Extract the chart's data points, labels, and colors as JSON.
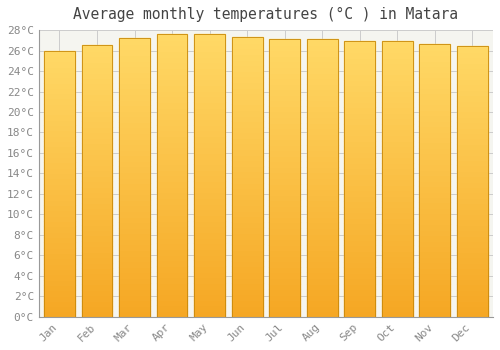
{
  "title": "Average monthly temperatures (°C ) in Matara",
  "months": [
    "Jan",
    "Feb",
    "Mar",
    "Apr",
    "May",
    "Jun",
    "Jul",
    "Aug",
    "Sep",
    "Oct",
    "Nov",
    "Dec"
  ],
  "temperatures": [
    26.0,
    26.5,
    27.2,
    27.6,
    27.6,
    27.3,
    27.1,
    27.1,
    26.9,
    26.9,
    26.6,
    26.4
  ],
  "bar_color_bottom": "#F5A623",
  "bar_color_top": "#FFD966",
  "bar_edge_color": "#C8880A",
  "background_color": "#FFFFFF",
  "plot_bg_color": "#F5F5F0",
  "grid_color": "#CCCCCC",
  "ytick_step": 2,
  "ymin": 0,
  "ymax": 28,
  "title_fontsize": 10.5,
  "tick_fontsize": 8,
  "tick_color": "#888888",
  "axis_font": "monospace"
}
